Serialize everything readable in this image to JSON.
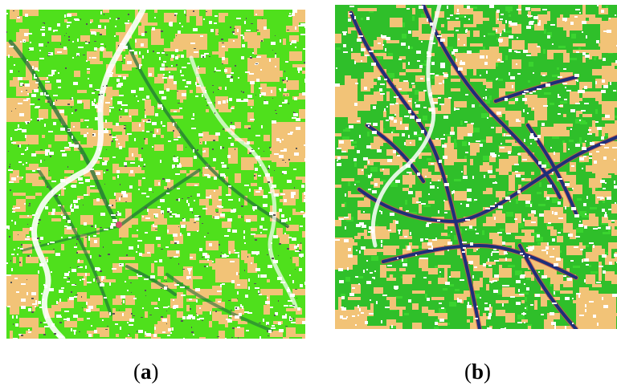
{
  "panels": [
    {
      "id": "a",
      "caption_open": "(",
      "caption_letter": "a",
      "caption_close": ")",
      "colors": {
        "vegetation": "#4fe01c",
        "bare_soil": "#f2c377",
        "water_channel": "#1f6f3a",
        "urban_noise": "#ffffff",
        "urban_dark": "#555555",
        "marker": "#d84b6c"
      }
    },
    {
      "id": "b",
      "caption_open": "(",
      "caption_letter": "b",
      "caption_close": ")",
      "colors": {
        "vegetation": "#2fbf2a",
        "vegetation_light": "#3ad42f",
        "bare_soil": "#f2c377",
        "water_channel": "#1d2f7a",
        "channel_edge": "#d2574a",
        "urban_noise": "#ffffff"
      }
    }
  ]
}
